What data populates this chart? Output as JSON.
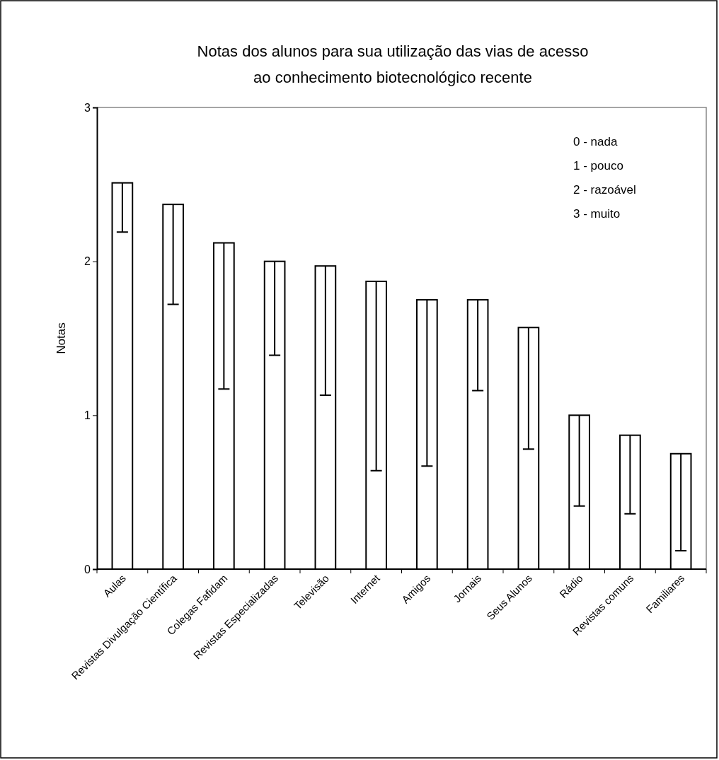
{
  "chart_data": {
    "type": "bar",
    "title": "Notas dos alunos para sua utilização das vias de acesso\nao conhecimento biotecnológico recente",
    "ylabel": "Notas",
    "categories": [
      "Aulas",
      "Revistas Divulgação Científica",
      "Colegas Fafidam",
      "Revistas Especializadas",
      "Televisão",
      "Internet",
      "Amigos",
      "Jornais",
      "Seus Alunos",
      "Rádio",
      "Revistas comuns",
      "Familiares"
    ],
    "values": [
      2.51,
      2.37,
      2.12,
      2.0,
      1.97,
      1.87,
      1.75,
      1.75,
      1.57,
      1.0,
      0.87,
      0.75
    ],
    "errors": [
      [
        2.19,
        2.51
      ],
      [
        1.72,
        2.37
      ],
      [
        1.17,
        2.12
      ],
      [
        1.39,
        2.0
      ],
      [
        1.13,
        1.97
      ],
      [
        0.64,
        1.87
      ],
      [
        0.67,
        1.75
      ],
      [
        1.16,
        1.75
      ],
      [
        0.78,
        1.57
      ],
      [
        0.41,
        1.0
      ],
      [
        0.36,
        0.87
      ],
      [
        0.12,
        0.75
      ]
    ],
    "color": "#ffffff",
    "ylim": [
      0,
      3
    ],
    "yticks": [
      0,
      1,
      2,
      3
    ],
    "grid": false,
    "annotations": [
      "0 - nada\n1 - pouco\n2 - razoável\n3 - muito"
    ]
  }
}
